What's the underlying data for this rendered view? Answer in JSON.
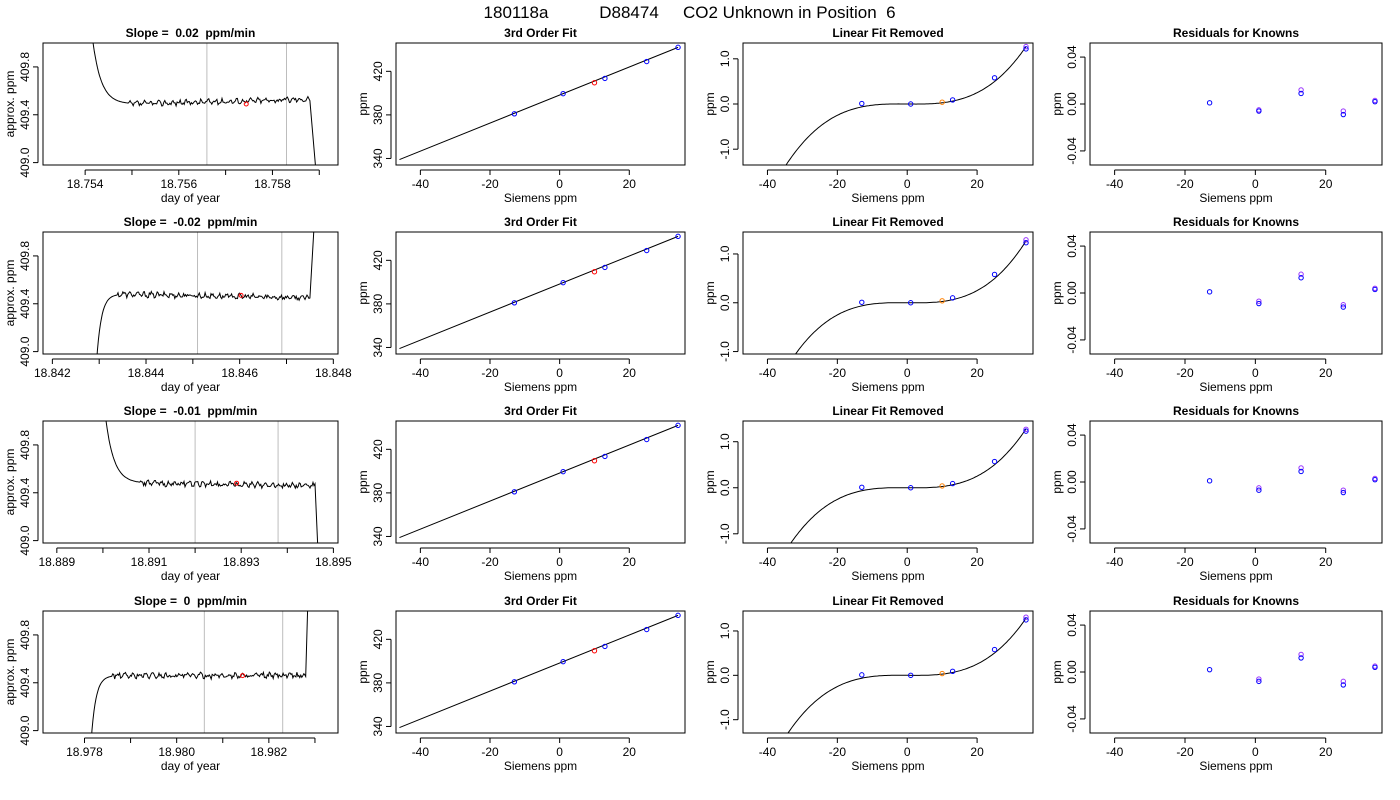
{
  "header": {
    "title_parts": [
      "180118a",
      "D88474",
      "CO2 Unknown in Position  6"
    ]
  },
  "colors": {
    "blue": "#0000ff",
    "red": "#ff0000",
    "orange": "#ff8000",
    "purple": "#9933ff",
    "grid": "#bdbdbd"
  },
  "chart_data": [
    {
      "row": 1,
      "type": "line",
      "title": "Slope =  0.02  ppm/min",
      "xlabel": "day of year",
      "ylabel": "approx. ppm",
      "xlim": [
        18.7531,
        18.7594
      ],
      "ylim": [
        408.98,
        410.0
      ],
      "xticks": [
        18.754,
        18.756,
        18.758
      ],
      "xticklabels": [
        "18.754",
        "18.756",
        "18.758"
      ],
      "xminor": [
        18.755,
        18.757,
        18.759
      ],
      "yticks": [
        409.0,
        409.4,
        409.8
      ],
      "yticklabels": [
        "409.0",
        "409.4",
        "409.8"
      ],
      "vlines": [
        18.7566,
        18.7583
      ],
      "trace": {
        "start": 18.754,
        "shoulder": 18.7549,
        "flat_end": 18.7588,
        "end": 18.759,
        "top": 410.8,
        "level": 409.49,
        "bottom": 408.6,
        "rise": 0.04,
        "side": "high"
      },
      "red_point": [
        18.75744,
        409.49
      ]
    },
    {
      "row": 2,
      "type": "line",
      "title": "Slope =  -0.02  ppm/min",
      "xlabel": "day of year",
      "ylabel": "approx. ppm",
      "xlim": [
        18.8418,
        18.8481
      ],
      "ylim": [
        408.98,
        410.0
      ],
      "xticks": [
        18.842,
        18.844,
        18.846,
        18.848
      ],
      "xticklabels": [
        "18.842",
        "18.844",
        "18.846",
        "18.848"
      ],
      "xminor": [
        18.843,
        18.845,
        18.847
      ],
      "yticks": [
        409.0,
        409.4,
        409.8
      ],
      "yticklabels": [
        "409.0",
        "409.4",
        "409.8"
      ],
      "vlines": [
        18.8451,
        18.8469
      ],
      "trace": {
        "start": 18.8429,
        "shoulder": 18.8434,
        "flat_end": 18.8475,
        "end": 18.8477,
        "top": 410.8,
        "level": 409.48,
        "bottom": 408.6,
        "rise": -0.03,
        "side": "low"
      },
      "red_point": [
        18.84603,
        409.47
      ]
    },
    {
      "row": 3,
      "type": "line",
      "title": "Slope =  -0.01  ppm/min",
      "xlabel": "day of year",
      "ylabel": "approx. ppm",
      "xlim": [
        18.8887,
        18.8951
      ],
      "ylim": [
        408.98,
        410.0
      ],
      "xticks": [
        18.889,
        18.891,
        18.893,
        18.895
      ],
      "xticklabels": [
        "18.889",
        "18.891",
        "18.893",
        "18.895"
      ],
      "xminor": [
        18.89,
        18.892,
        18.894
      ],
      "yticks": [
        409.0,
        409.4,
        409.8
      ],
      "yticklabels": [
        "409.0",
        "409.4",
        "409.8"
      ],
      "vlines": [
        18.892,
        18.8938
      ],
      "trace": {
        "start": 18.8899,
        "shoulder": 18.8908,
        "flat_end": 18.8946,
        "end": 18.8947,
        "top": 410.8,
        "level": 409.48,
        "bottom": 408.6,
        "rise": -0.02,
        "side": "high"
      },
      "red_point": [
        18.8929,
        409.48
      ]
    },
    {
      "row": 4,
      "type": "line",
      "title": "Slope =  0  ppm/min",
      "xlabel": "day of year",
      "ylabel": "approx. ppm",
      "xlim": [
        18.9771,
        18.9835
      ],
      "ylim": [
        408.98,
        410.0
      ],
      "xticks": [
        18.978,
        18.98,
        18.982
      ],
      "xticklabels": [
        "18.978",
        "18.980",
        "18.982"
      ],
      "xminor": [
        18.979,
        18.981,
        18.983
      ],
      "yticks": [
        409.0,
        409.4,
        409.8
      ],
      "yticklabels": [
        "409.0",
        "409.4",
        "409.8"
      ],
      "vlines": [
        18.9806,
        18.9823
      ],
      "trace": {
        "start": 18.9781,
        "shoulder": 18.9786,
        "flat_end": 18.9828,
        "end": 18.9829,
        "top": 410.8,
        "level": 409.46,
        "bottom": 408.6,
        "rise": 0.0,
        "side": "low"
      },
      "red_point": [
        18.98143,
        409.46
      ]
    },
    {
      "row": 1,
      "type": "scatter",
      "title": "3rd Order Fit",
      "xlabel": "Siemens ppm",
      "ylabel": "ppm",
      "xlim": [
        -47,
        36
      ],
      "ylim": [
        334,
        446
      ],
      "xticks": [
        -40,
        -20,
        0,
        20
      ],
      "xticklabels": [
        "-40",
        "-20",
        "0",
        "20"
      ],
      "yticks": [
        340,
        380,
        420
      ],
      "yticklabels": [
        "340",
        "380",
        "420"
      ],
      "fit_line": {
        "x": [
          -46,
          34
        ],
        "y": [
          339,
          442
        ]
      },
      "points_blue": [
        [
          -13,
          381
        ],
        [
          1,
          399.5
        ],
        [
          13,
          413.5
        ],
        [
          25,
          429
        ],
        [
          34,
          442
        ]
      ],
      "points_red": [
        [
          10,
          409.5
        ]
      ]
    },
    {
      "row": 2,
      "type": "scatter",
      "title": "3rd Order Fit",
      "xlabel": "Siemens ppm",
      "ylabel": "ppm",
      "xlim": [
        -47,
        36
      ],
      "ylim": [
        334,
        446
      ],
      "xticks": [
        -40,
        -20,
        0,
        20
      ],
      "xticklabels": [
        "-40",
        "-20",
        "0",
        "20"
      ],
      "yticks": [
        340,
        380,
        420
      ],
      "yticklabels": [
        "340",
        "380",
        "420"
      ],
      "fit_line": {
        "x": [
          -46,
          34
        ],
        "y": [
          339,
          442
        ]
      },
      "points_blue": [
        [
          -13,
          381
        ],
        [
          1,
          399.5
        ],
        [
          13,
          413.5
        ],
        [
          25,
          429
        ],
        [
          34,
          442
        ]
      ],
      "points_red": [
        [
          10,
          409.5
        ]
      ]
    },
    {
      "row": 3,
      "type": "scatter",
      "title": "3rd Order Fit",
      "xlabel": "Siemens ppm",
      "ylabel": "ppm",
      "xlim": [
        -47,
        36
      ],
      "ylim": [
        334,
        446
      ],
      "xticks": [
        -40,
        -20,
        0,
        20
      ],
      "xticklabels": [
        "-40",
        "-20",
        "0",
        "20"
      ],
      "yticks": [
        340,
        380,
        420
      ],
      "yticklabels": [
        "340",
        "380",
        "420"
      ],
      "fit_line": {
        "x": [
          -46,
          34
        ],
        "y": [
          339,
          442
        ]
      },
      "points_blue": [
        [
          -13,
          381
        ],
        [
          1,
          399.5
        ],
        [
          13,
          413.5
        ],
        [
          25,
          429
        ],
        [
          34,
          442
        ]
      ],
      "points_red": [
        [
          10,
          409.5
        ]
      ]
    },
    {
      "row": 4,
      "type": "scatter",
      "title": "3rd Order Fit",
      "xlabel": "Siemens ppm",
      "ylabel": "ppm",
      "xlim": [
        -47,
        36
      ],
      "ylim": [
        334,
        446
      ],
      "xticks": [
        -40,
        -20,
        0,
        20
      ],
      "xticklabels": [
        "-40",
        "-20",
        "0",
        "20"
      ],
      "yticks": [
        340,
        380,
        420
      ],
      "yticklabels": [
        "340",
        "380",
        "420"
      ],
      "fit_line": {
        "x": [
          -46,
          34
        ],
        "y": [
          339,
          442
        ]
      },
      "points_blue": [
        [
          -13,
          381
        ],
        [
          1,
          399.5
        ],
        [
          13,
          413.5
        ],
        [
          25,
          429
        ],
        [
          34,
          442
        ]
      ],
      "points_red": [
        [
          10,
          409.5
        ]
      ]
    },
    {
      "row": 1,
      "type": "line",
      "title": "Linear Fit Removed",
      "xlabel": "Siemens ppm",
      "ylabel": "ppm",
      "xlim": [
        -47,
        36
      ],
      "ylim": [
        -1.35,
        1.35
      ],
      "xticks": [
        -40,
        -20,
        0,
        20
      ],
      "xticklabels": [
        "-40",
        "-20",
        "0",
        "20"
      ],
      "yticks": [
        -1.0,
        0.0,
        1.0
      ],
      "yticklabels": [
        "-1.0",
        "0.0",
        "1.0"
      ],
      "curve": {
        "x_range": [
          -46,
          34
        ],
        "coefficients": [
          0.0,
          -0.00065,
          0.0,
          3.29e-05
        ]
      },
      "points_blue": [
        [
          -13,
          0.01
        ],
        [
          1,
          0.0
        ],
        [
          13,
          0.09
        ],
        [
          25,
          0.58
        ],
        [
          34,
          1.22
        ]
      ],
      "points_purple": [
        [
          34,
          1.27
        ]
      ],
      "points_orange": [
        [
          10,
          0.04
        ]
      ]
    },
    {
      "row": 2,
      "type": "line",
      "title": "Linear Fit Removed",
      "xlabel": "Siemens ppm",
      "ylabel": "ppm",
      "xlim": [
        -47,
        36
      ],
      "ylim": [
        -1.05,
        1.45
      ],
      "xticks": [
        -40,
        -20,
        0,
        20
      ],
      "xticklabels": [
        "-40",
        "-20",
        "0",
        "20"
      ],
      "yticks": [
        -1.0,
        0.0,
        1.0
      ],
      "yticklabels": [
        "-1.0",
        "0.0",
        "1.0"
      ],
      "curve": {
        "x_range": [
          -46,
          34
        ],
        "coefficients": [
          0.0,
          -0.00066,
          0.0,
          3.28e-05
        ]
      },
      "points_blue": [
        [
          -13,
          0.01
        ],
        [
          1,
          0.0
        ],
        [
          13,
          0.1
        ],
        [
          25,
          0.58
        ],
        [
          34,
          1.23
        ]
      ],
      "points_purple": [
        [
          34,
          1.29
        ]
      ],
      "points_orange": [
        [
          10,
          0.04
        ]
      ]
    },
    {
      "row": 3,
      "type": "line",
      "title": "Linear Fit Removed",
      "xlabel": "Siemens ppm",
      "ylabel": "ppm",
      "xlim": [
        -47,
        36
      ],
      "ylim": [
        -1.2,
        1.45
      ],
      "xticks": [
        -40,
        -20,
        0,
        20
      ],
      "xticklabels": [
        "-40",
        "-20",
        "0",
        "20"
      ],
      "yticks": [
        -1.0,
        0.0,
        1.0
      ],
      "yticklabels": [
        "-1.0",
        "0.0",
        "1.0"
      ],
      "curve": {
        "x_range": [
          -46,
          34
        ],
        "coefficients": [
          0.0,
          -0.00064,
          0.0,
          3.31e-05
        ]
      },
      "points_blue": [
        [
          -13,
          0.01
        ],
        [
          1,
          0.0
        ],
        [
          13,
          0.09
        ],
        [
          25,
          0.57
        ],
        [
          34,
          1.23
        ]
      ],
      "points_purple": [
        [
          34,
          1.27
        ]
      ],
      "points_orange": [
        [
          10,
          0.04
        ]
      ]
    },
    {
      "row": 4,
      "type": "line",
      "title": "Linear Fit Removed",
      "xlabel": "Siemens ppm",
      "ylabel": "ppm",
      "xlim": [
        -47,
        36
      ],
      "ylim": [
        -1.3,
        1.45
      ],
      "xticks": [
        -40,
        -20,
        0,
        20
      ],
      "xticklabels": [
        "-40",
        "-20",
        "0",
        "20"
      ],
      "yticks": [
        -1.0,
        0.0,
        1.0
      ],
      "yticklabels": [
        "-1.0",
        "0.0",
        "1.0"
      ],
      "curve": {
        "x_range": [
          -46,
          34
        ],
        "coefficients": [
          0.0,
          -0.00066,
          0.0,
          3.33e-05
        ]
      },
      "points_blue": [
        [
          -13,
          0.01
        ],
        [
          1,
          0.0
        ],
        [
          13,
          0.09
        ],
        [
          25,
          0.58
        ],
        [
          34,
          1.25
        ]
      ],
      "points_purple": [
        [
          34,
          1.31
        ]
      ],
      "points_orange": [
        [
          10,
          0.04
        ]
      ]
    },
    {
      "row": 1,
      "type": "scatter",
      "title": "Residuals for Knowns",
      "xlabel": "Siemens ppm",
      "ylabel": "ppm",
      "xlim": [
        -47,
        36
      ],
      "ylim": [
        -0.052,
        0.052
      ],
      "xticks": [
        -40,
        -20,
        0,
        20
      ],
      "xticklabels": [
        "-40",
        "-20",
        "0",
        "20"
      ],
      "yticks": [
        -0.04,
        0.0,
        0.04
      ],
      "yticklabels": [
        "-0.04",
        "0.00",
        "0.04"
      ],
      "points_blue": [
        [
          -13,
          0.001
        ],
        [
          1,
          -0.006
        ],
        [
          13,
          0.009
        ],
        [
          25,
          -0.009
        ],
        [
          34,
          0.002
        ]
      ],
      "points_purple": [
        [
          1,
          -0.005
        ],
        [
          13,
          0.012
        ],
        [
          25,
          -0.006
        ],
        [
          34,
          0.003
        ]
      ]
    },
    {
      "row": 2,
      "type": "scatter",
      "title": "Residuals for Knowns",
      "xlabel": "Siemens ppm",
      "ylabel": "ppm",
      "xlim": [
        -47,
        36
      ],
      "ylim": [
        -0.052,
        0.052
      ],
      "xticks": [
        -40,
        -20,
        0,
        20
      ],
      "xticklabels": [
        "-40",
        "-20",
        "0",
        "20"
      ],
      "yticks": [
        -0.04,
        0.0,
        0.04
      ],
      "yticklabels": [
        "-0.04",
        "0.00",
        "0.04"
      ],
      "points_blue": [
        [
          -13,
          0.001
        ],
        [
          1,
          -0.009
        ],
        [
          13,
          0.013
        ],
        [
          25,
          -0.012
        ],
        [
          34,
          0.003
        ]
      ],
      "points_purple": [
        [
          1,
          -0.007
        ],
        [
          13,
          0.016
        ],
        [
          25,
          -0.01
        ],
        [
          34,
          0.004
        ]
      ]
    },
    {
      "row": 3,
      "type": "scatter",
      "title": "Residuals for Knowns",
      "xlabel": "Siemens ppm",
      "ylabel": "ppm",
      "xlim": [
        -47,
        36
      ],
      "ylim": [
        -0.052,
        0.052
      ],
      "xticks": [
        -40,
        -20,
        0,
        20
      ],
      "xticklabels": [
        "-40",
        "-20",
        "0",
        "20"
      ],
      "yticks": [
        -0.04,
        0.0,
        0.04
      ],
      "yticklabels": [
        "-0.04",
        "0.00",
        "0.04"
      ],
      "points_blue": [
        [
          -13,
          0.001
        ],
        [
          1,
          -0.007
        ],
        [
          13,
          0.009
        ],
        [
          25,
          -0.009
        ],
        [
          34,
          0.002
        ]
      ],
      "points_purple": [
        [
          1,
          -0.005
        ],
        [
          13,
          0.012
        ],
        [
          25,
          -0.007
        ],
        [
          34,
          0.003
        ]
      ]
    },
    {
      "row": 4,
      "type": "scatter",
      "title": "Residuals for Knowns",
      "xlabel": "Siemens ppm",
      "ylabel": "ppm",
      "xlim": [
        -47,
        36
      ],
      "ylim": [
        -0.052,
        0.052
      ],
      "xticks": [
        -40,
        -20,
        0,
        20
      ],
      "xticklabels": [
        "-40",
        "-20",
        "0",
        "20"
      ],
      "yticks": [
        -0.04,
        0.0,
        0.04
      ],
      "yticklabels": [
        "-0.04",
        "0.00",
        "0.04"
      ],
      "points_blue": [
        [
          -13,
          0.002
        ],
        [
          1,
          -0.008
        ],
        [
          13,
          0.012
        ],
        [
          25,
          -0.011
        ],
        [
          34,
          0.004
        ]
      ],
      "points_purple": [
        [
          1,
          -0.006
        ],
        [
          13,
          0.015
        ],
        [
          25,
          -0.008
        ],
        [
          34,
          0.005
        ]
      ]
    }
  ]
}
